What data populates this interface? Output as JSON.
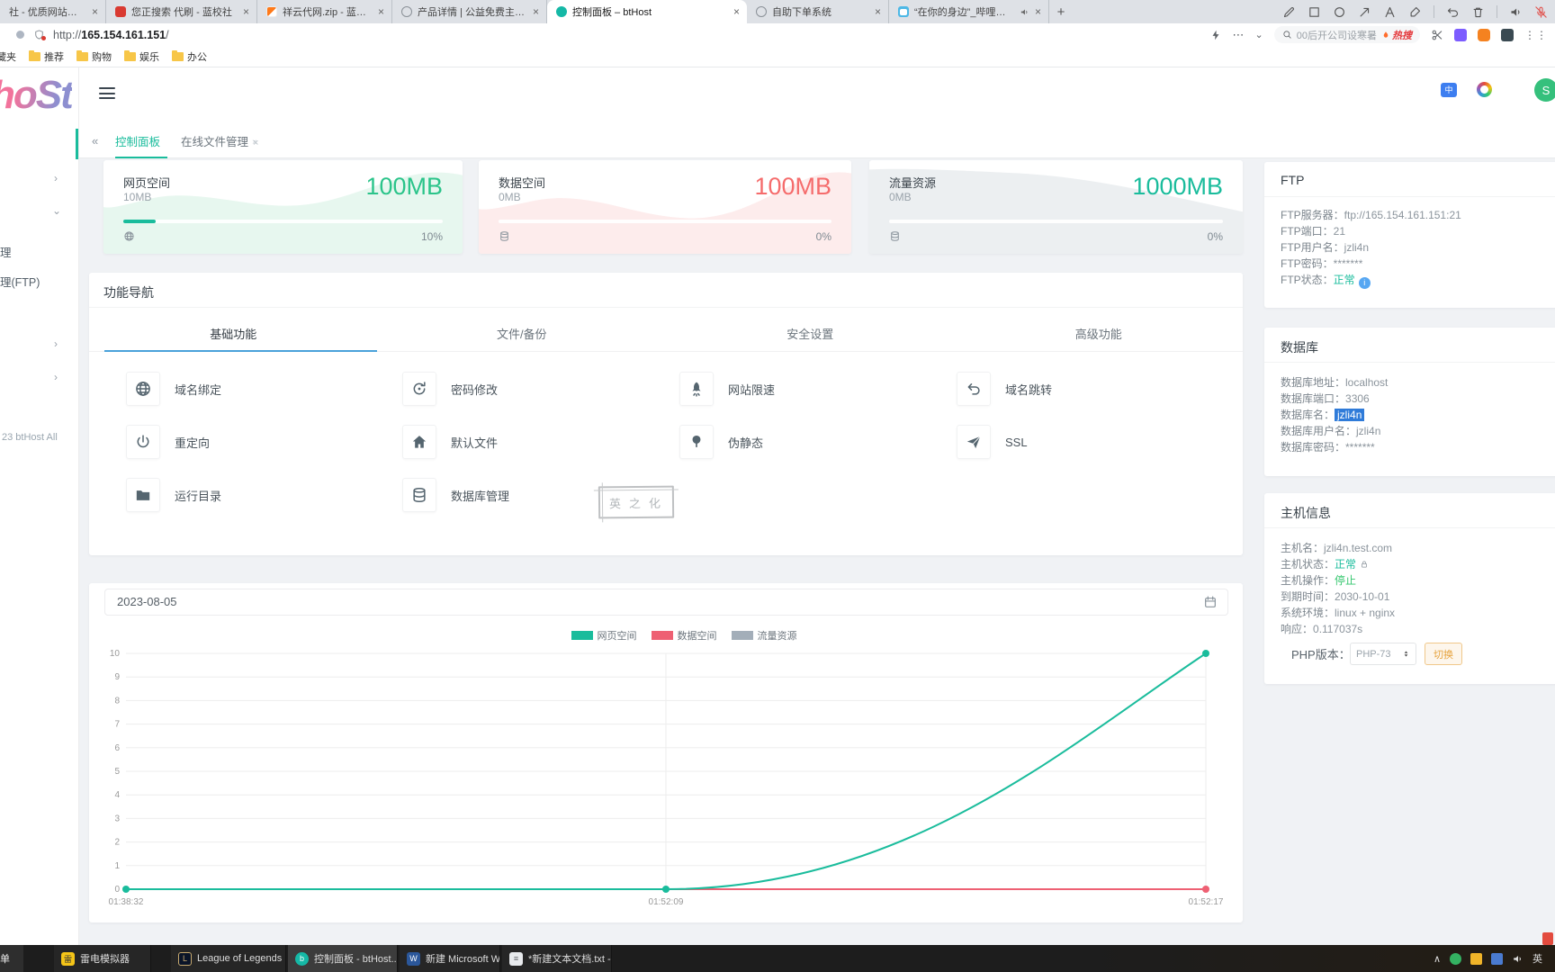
{
  "browser": {
    "tabs": [
      {
        "title": "社 - 优质网站源码与搭建",
        "icon": "none"
      },
      {
        "title": "您正搜索 代刷 - 蓝校社",
        "icon": "doc-red-icon"
      },
      {
        "title": "祥云代网.zip - 蓝奏云",
        "icon": "lanzou-icon"
      },
      {
        "title": "产品详情 | 公益免费主机互联",
        "icon": "globe-favicon"
      },
      {
        "title": "控制面板 – btHost",
        "icon": "teal-dot-icon",
        "active": true
      },
      {
        "title": "自助下单系统",
        "icon": "globe-favicon"
      },
      {
        "title": "“在你的身边”_哔哩哔哩_bi",
        "icon": "bilibili-icon",
        "audio": true
      }
    ],
    "new_tab_label": "+",
    "close_glyph": "×",
    "url_scheme": "http://",
    "url_host": "165.154.161.151",
    "url_path": "/",
    "search_query": "00后开公司设寒暑",
    "hot_label": "热搜",
    "bookmarks_partial": "藏夹",
    "bookmark_folders": [
      "推荐",
      "购物",
      "娱乐",
      "办公"
    ]
  },
  "app": {
    "logo_text": "hoSt",
    "avatar_letter": "S",
    "translate_badge": "中",
    "page_tabs": {
      "collapse_glyph": "«",
      "tab1": "控制面板",
      "tab2": "在线文件管理",
      "tab2_close": "×",
      "ghost_close": "×"
    },
    "sidebar": {
      "item1": "理",
      "item2": "理(FTP)",
      "chevron_right": "›",
      "chevron_down": "⌄",
      "copyright": "23 btHost All"
    },
    "stat_cards": [
      {
        "title": "网页空间",
        "used": "10MB",
        "total": "100MB",
        "percent": "10%",
        "theme": "green",
        "icon": "globe-icon"
      },
      {
        "title": "数据空间",
        "used": "0MB",
        "total": "100MB",
        "percent": "0%",
        "theme": "red",
        "icon": "database-icon"
      },
      {
        "title": "流量资源",
        "used": "0MB",
        "total": "1000MB",
        "percent": "0%",
        "theme": "gray",
        "icon": "database-icon"
      }
    ],
    "nav": {
      "title": "功能导航",
      "tabs": [
        {
          "label": "基础功能",
          "active": true
        },
        {
          "label": "文件/备份"
        },
        {
          "label": "安全设置"
        },
        {
          "label": "高级功能"
        }
      ],
      "items": [
        {
          "label": "域名绑定",
          "icon": "globe-icon"
        },
        {
          "label": "密码修改",
          "icon": "refresh-icon"
        },
        {
          "label": "网站限速",
          "icon": "rocket-icon"
        },
        {
          "label": "域名跳转",
          "icon": "undo-icon"
        },
        {
          "label": "重定向",
          "icon": "power-icon"
        },
        {
          "label": "默认文件",
          "icon": "home-icon"
        },
        {
          "label": "伪静态",
          "icon": "tree-icon"
        },
        {
          "label": "SSL",
          "icon": "send-icon"
        },
        {
          "label": "运行目录",
          "icon": "folder-icon"
        },
        {
          "label": "数据库管理",
          "icon": "database-icon"
        }
      ]
    },
    "stamp_text": "英之化",
    "chart_card": {
      "date": "2023-08-05"
    },
    "ftp": {
      "title": "FTP",
      "rows": [
        {
          "label": "FTP服务器：",
          "value": "ftp://165.154.161.151:21"
        },
        {
          "label": "FTP端口：",
          "value": "21"
        },
        {
          "label": "FTP用户名：",
          "value": "jzli4n"
        },
        {
          "label": "FTP密码：",
          "value": "*******"
        },
        {
          "label": "FTP状态：",
          "value": "正常"
        }
      ]
    },
    "database": {
      "title": "数据库",
      "rows": [
        {
          "label": "数据库地址：",
          "value": "localhost"
        },
        {
          "label": "数据库端口：",
          "value": "3306"
        },
        {
          "label": "数据库名：",
          "value": "jzli4n"
        },
        {
          "label": "数据库用户名：",
          "value": "jzli4n"
        },
        {
          "label": "数据库密码：",
          "value": "*******"
        }
      ]
    },
    "host": {
      "title": "主机信息",
      "rows": [
        {
          "label": "主机名：",
          "value": "jzli4n.test.com"
        },
        {
          "label": "主机状态：",
          "value": "正常"
        },
        {
          "label": "主机操作：",
          "value": "停止"
        },
        {
          "label": "到期时间：",
          "value": "2030-10-01"
        },
        {
          "label": "系统环境：",
          "value": "linux + nginx"
        },
        {
          "label": "响应：",
          "value": "0.117037s"
        }
      ],
      "php_label": "PHP版本：",
      "php_selected": "PHP-73",
      "php_button": "切换"
    }
  },
  "chart_data": {
    "type": "line",
    "x": [
      "01:38:32",
      "01:52:09",
      "01:52:17"
    ],
    "series": [
      {
        "name": "网页空间",
        "color": "#1abc9c",
        "values": [
          0,
          0,
          10
        ]
      },
      {
        "name": "数据空间",
        "color": "#ee6073",
        "values": [
          0,
          0,
          0
        ]
      },
      {
        "name": "流量资源",
        "color": "#a3aeb9",
        "values": [
          0,
          0,
          0
        ]
      }
    ],
    "ylim": [
      0,
      10
    ],
    "yticks": [
      0,
      1,
      2,
      3,
      4,
      5,
      6,
      7,
      8,
      9,
      10
    ],
    "grid": true,
    "legend_position": "top"
  },
  "taskbar": {
    "partial": "单",
    "items": [
      {
        "label": "雷电模拟器",
        "icon": "ld-player-icon"
      },
      {
        "label": "League of Legends",
        "icon": "lol-icon"
      },
      {
        "label": "控制面板 - btHost...",
        "icon": "bthost-icon",
        "active": true
      },
      {
        "label": "新建 Microsoft W...",
        "icon": "word-icon"
      },
      {
        "label": "*新建文本文档.txt -...",
        "icon": "notepad-icon"
      }
    ],
    "tray_chevron": "∧",
    "ime": "英"
  }
}
